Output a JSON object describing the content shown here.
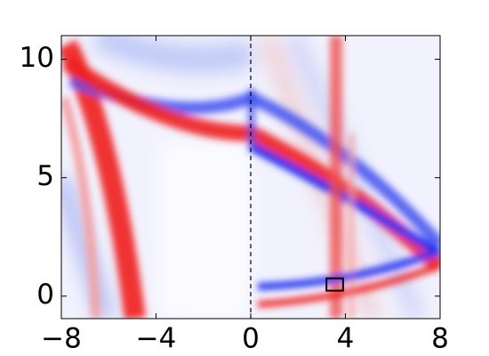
{
  "chart_data": {
    "type": "heatmap",
    "xlim": [
      -8,
      8
    ],
    "xticks": [
      {
        "value": -8,
        "label": "−8"
      },
      {
        "value": -4,
        "label": "−4"
      },
      0,
      4,
      8
    ],
    "ylim": [
      -0.95,
      11
    ],
    "yticks": [
      0,
      5,
      10
    ],
    "vline_x": 0,
    "box": {
      "x": [
        3.2,
        3.9
      ],
      "y": [
        0.23,
        0.75
      ]
    }
  }
}
